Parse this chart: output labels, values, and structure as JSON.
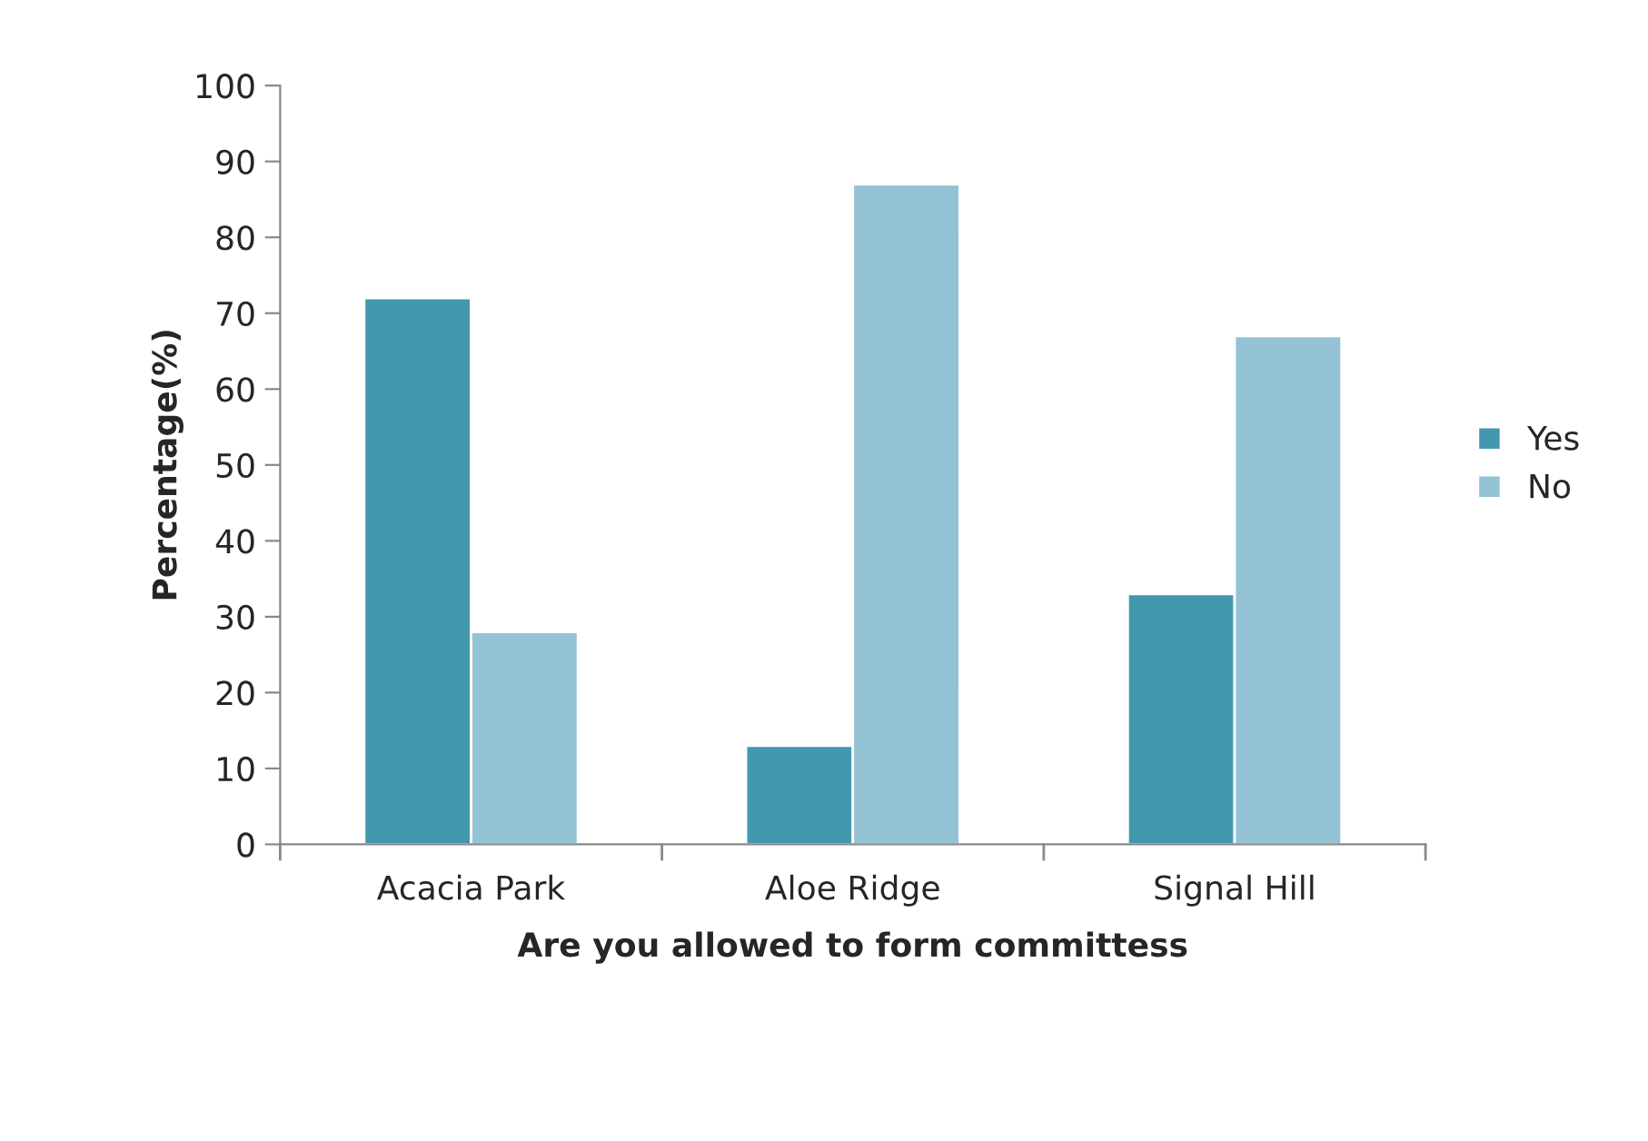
{
  "chart_data": {
    "type": "bar",
    "xlabel": "Are you allowed to form committess",
    "ylabel": "Percentage(%)",
    "categories": [
      "Acacia Park",
      "Aloe Ridge",
      "Signal Hill"
    ],
    "series": [
      {
        "name": "Yes",
        "color": "#4398b0",
        "values": [
          72,
          13,
          33
        ]
      },
      {
        "name": "No",
        "color": "#93c3d4",
        "values": [
          28,
          87,
          67
        ]
      }
    ],
    "ylim": [
      0,
      100
    ],
    "yticks": [
      0,
      10,
      20,
      30,
      40,
      50,
      60,
      70,
      80,
      90,
      100
    ],
    "grid": false,
    "legend": "right"
  }
}
